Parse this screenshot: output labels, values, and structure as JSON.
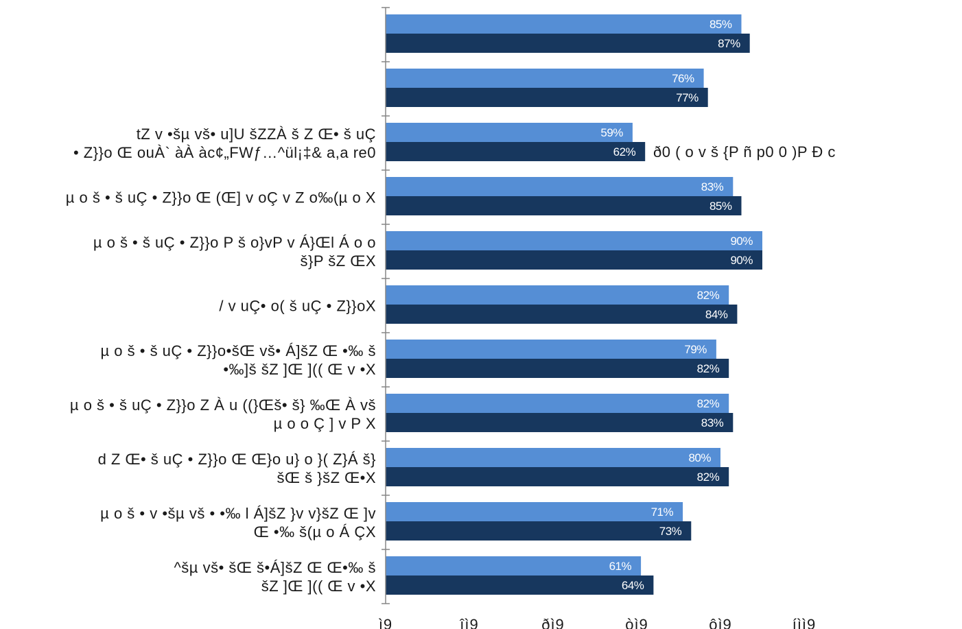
{
  "chart_data": {
    "type": "bar",
    "orientation": "horizontal",
    "xlim": [
      0,
      100
    ],
    "x_ticks": [
      "ì9",
      "îì9",
      "ðì9",
      "òì9",
      "ôì9",
      "íìì9"
    ],
    "categories": [
      [
        ""
      ],
      [
        ""
      ],
      [
        "tZ v •šµ vš• u]U šZZÀ š Z Œ• š uÇ",
        "• Z}}o Œ ouÀ` àÀ àc¢„FWƒ…^ül¡‡& a,a re0"
      ],
      [
        "µ o š • š uÇ • Z}}o Œ (Œ] v oÇ v Z o‰(µ o X"
      ],
      [
        "µ o š • š uÇ • Z}}o P š o}vP v Á}Œl Á o o",
        "š}P šZ ŒX"
      ],
      [
        "/ v uÇ• o( š uÇ • Z}}oX"
      ],
      [
        "µ o š • š uÇ • Z}}o•šŒ vš• Á]šZ Œ •‰ š",
        "•‰]š šZ ]Œ ](( Œ v •X"
      ],
      [
        "µ o š • š uÇ • Z}}o Z À u ((}Œš• š} ‰Œ À vš",
        "µ o o Ç ] v P X"
      ],
      [
        "d Z Œ• š uÇ • Z}}o Œ Œ}o u} o }( Z}Á š}",
        "šŒ š }šZ Œ•X"
      ],
      [
        "µ o š • v •šµ vš • •‰ l Á]šZ }v v}šZ Œ ]v",
        "Œ •‰ š(µ o Á ÇX"
      ],
      [
        "^šµ vš• šŒ š•Á]šZ Œ Œ•‰ š",
        "šZ ]Œ ](( Œ v •X"
      ]
    ],
    "overlay_text": "ð0 ( o v š {P ñ p0 0 )P Ð c",
    "series": [
      {
        "values": [
          85,
          76,
          59,
          83,
          90,
          82,
          79,
          82,
          80,
          71,
          61
        ]
      },
      {
        "values": [
          87,
          77,
          62,
          85,
          90,
          84,
          82,
          83,
          82,
          73,
          64
        ]
      }
    ],
    "data_labels": [
      [
        "85%",
        "76%",
        "59%",
        "83%",
        "90%",
        "82%",
        "79%",
        "82%",
        "80%",
        "71%",
        "61%"
      ],
      [
        "87%",
        "77%",
        "62%",
        "85%",
        "90%",
        "84%",
        "82%",
        "83%",
        "82%",
        "73%",
        "64%"
      ]
    ],
    "colors": [
      "#558ed5",
      "#17375e"
    ],
    "grid": false,
    "legend": "none"
  }
}
